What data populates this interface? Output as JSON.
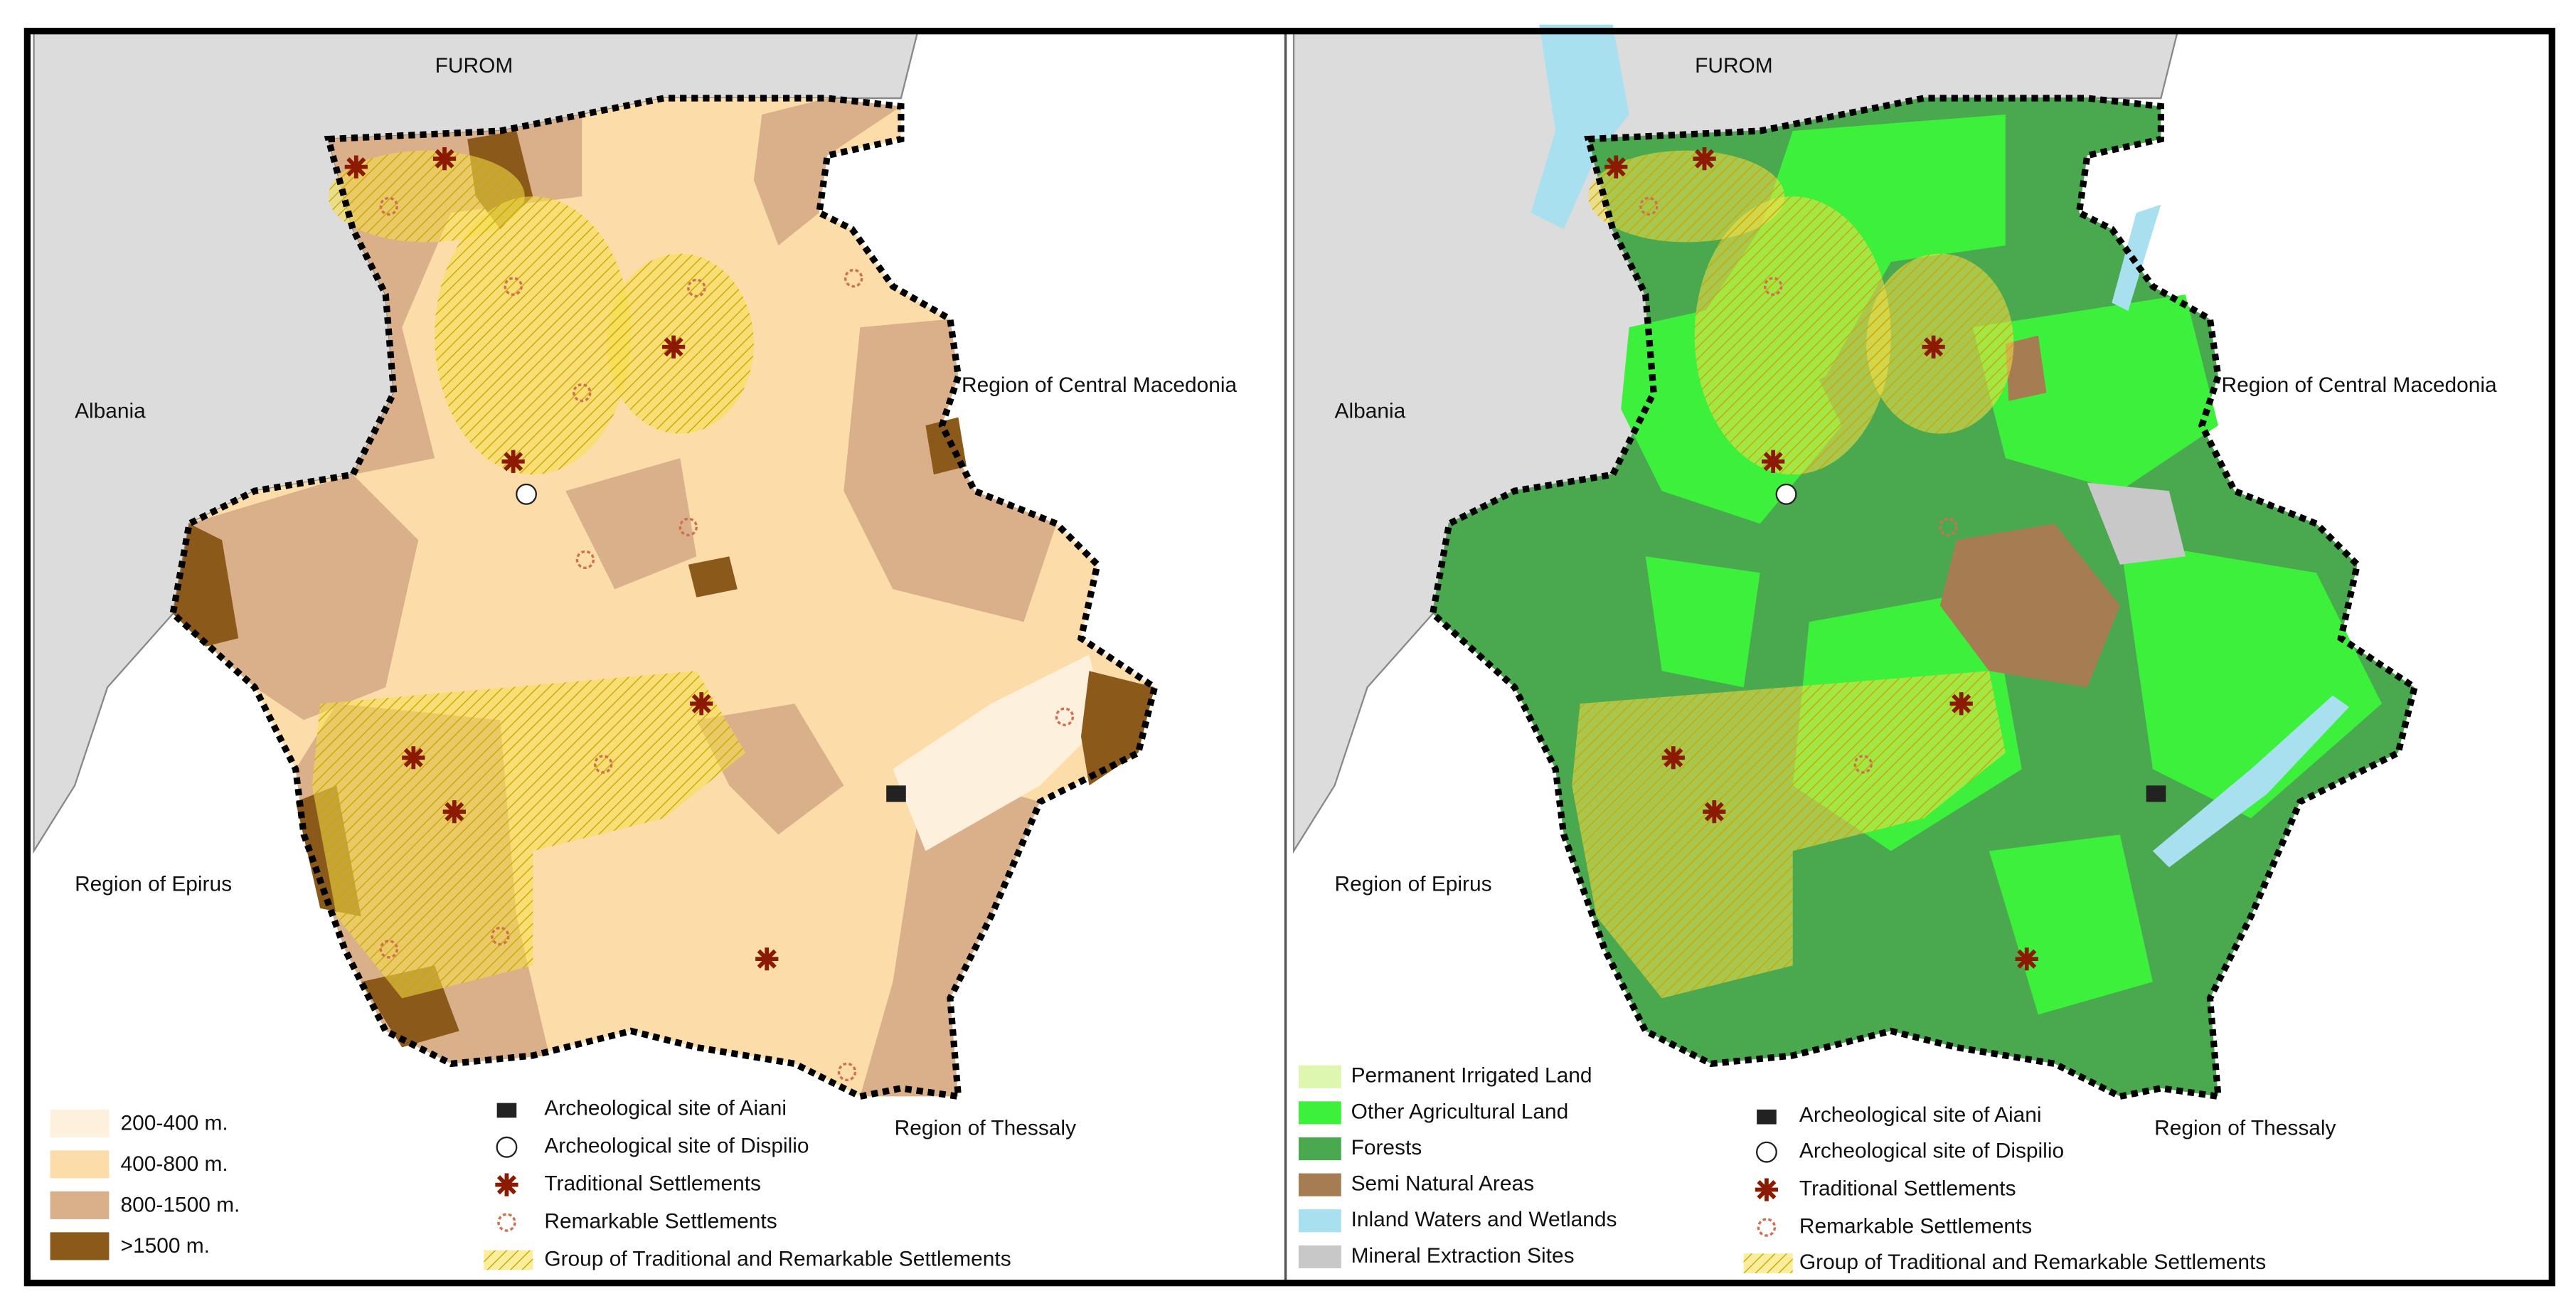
{
  "left_map": {
    "labels": {
      "north": "FUROM",
      "west": "Albania",
      "east": "Region of Central Macedonia",
      "southwest": "Region of Epirus",
      "southeast": "Region of Thessaly"
    },
    "legend": [
      "200-400 m.",
      "400-800 m.",
      "800-1500 m.",
      ">1500 m."
    ],
    "symbols": [
      "Archeological site of Aiani",
      "Archeological site of Dispilio",
      "Traditional Settlements",
      "Remarkable Settlements",
      "Group of Traditional and Remarkable Settlements"
    ]
  },
  "right_map": {
    "labels": {
      "north": "FUROM",
      "west": "Albania",
      "east": "Region of Central Macedonia",
      "southwest": "Region of Epirus",
      "southeast": "Region of Thessaly"
    },
    "legend": [
      "Permanent Irrigated Land",
      "Other Agricultural Land",
      "Forests",
      "Semi Natural Areas",
      "Inland Waters and Wetlands",
      "Mineral Extraction Sites"
    ],
    "symbols": [
      "Archeological site of Aiani",
      "Archeological site of Dispilio",
      "Traditional Settlements",
      "Remarkable Settlements",
      "Group of Traditional and Remarkable Settlements"
    ]
  }
}
